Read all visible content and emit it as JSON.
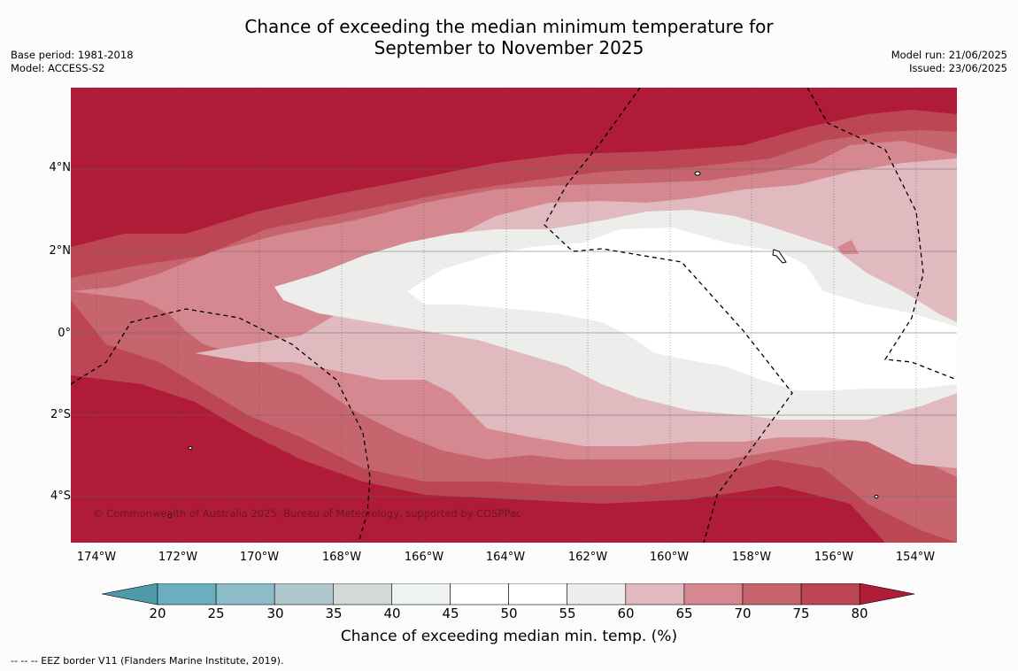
{
  "title_line1": "Chance of exceeding the median minimum temperature for",
  "title_line2": "September to November 2025",
  "meta_left": {
    "base_period": "Base period: 1981-2018",
    "model": "Model: ACCESS-S2"
  },
  "meta_right": {
    "model_run": "Model run: 21/06/2025",
    "issued": "Issued: 23/06/2025"
  },
  "map": {
    "lat_labels": [
      "4°N",
      "2°N",
      "0°",
      "2°S",
      "4°S"
    ],
    "lon_labels": [
      "174°W",
      "172°W",
      "170°W",
      "168°W",
      "166°W",
      "164°W",
      "162°W",
      "160°W",
      "158°W",
      "156°W",
      "154°W"
    ],
    "copyright": "© Commonwealth of Australia 2025, Bureau of Meteorology, supported by COSPPac"
  },
  "colorbar": {
    "ticks": [
      "20",
      "25",
      "30",
      "35",
      "40",
      "45",
      "50",
      "55",
      "60",
      "65",
      "70",
      "75",
      "80"
    ],
    "colors": [
      "#4d9aab",
      "#6aaebf",
      "#8cbcc8",
      "#afc8cd",
      "#d3d8d9",
      "#eef2f2",
      "#ffffff",
      "#ffffff",
      "#ededec",
      "#e0babf",
      "#d5888f",
      "#c7656e",
      "#bd4654",
      "#b01c38"
    ],
    "label": "Chance of exceeding median min. temp. (%)"
  },
  "footer": "--  --  -- EEZ border V11 (Flanders Marine Institute, 2019)."
}
